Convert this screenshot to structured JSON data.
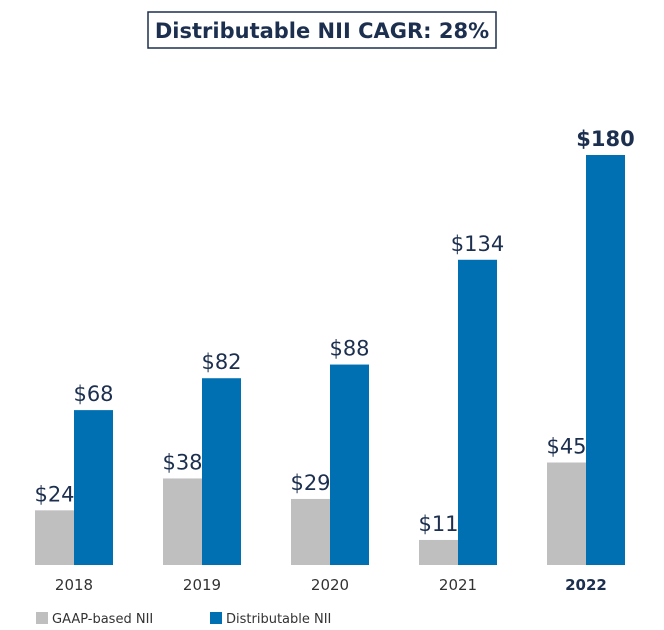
{
  "chart_data": {
    "type": "bar",
    "title": "Distributable NII CAGR: 28%",
    "categories": [
      "2018",
      "2019",
      "2020",
      "2021",
      "2022"
    ],
    "series": [
      {
        "name": "GAAP-based NII",
        "color": "#bfbfbf",
        "values": [
          24,
          38,
          29,
          11,
          45
        ],
        "value_labels": [
          "$24",
          "$38",
          "$29",
          "$11",
          "$45"
        ]
      },
      {
        "name": "Distributable NII",
        "color": "#0070b2",
        "values": [
          68,
          82,
          88,
          134,
          180
        ],
        "value_labels": [
          "$68",
          "$82",
          "$88",
          "$134",
          "$180"
        ]
      }
    ],
    "grid": false
  }
}
